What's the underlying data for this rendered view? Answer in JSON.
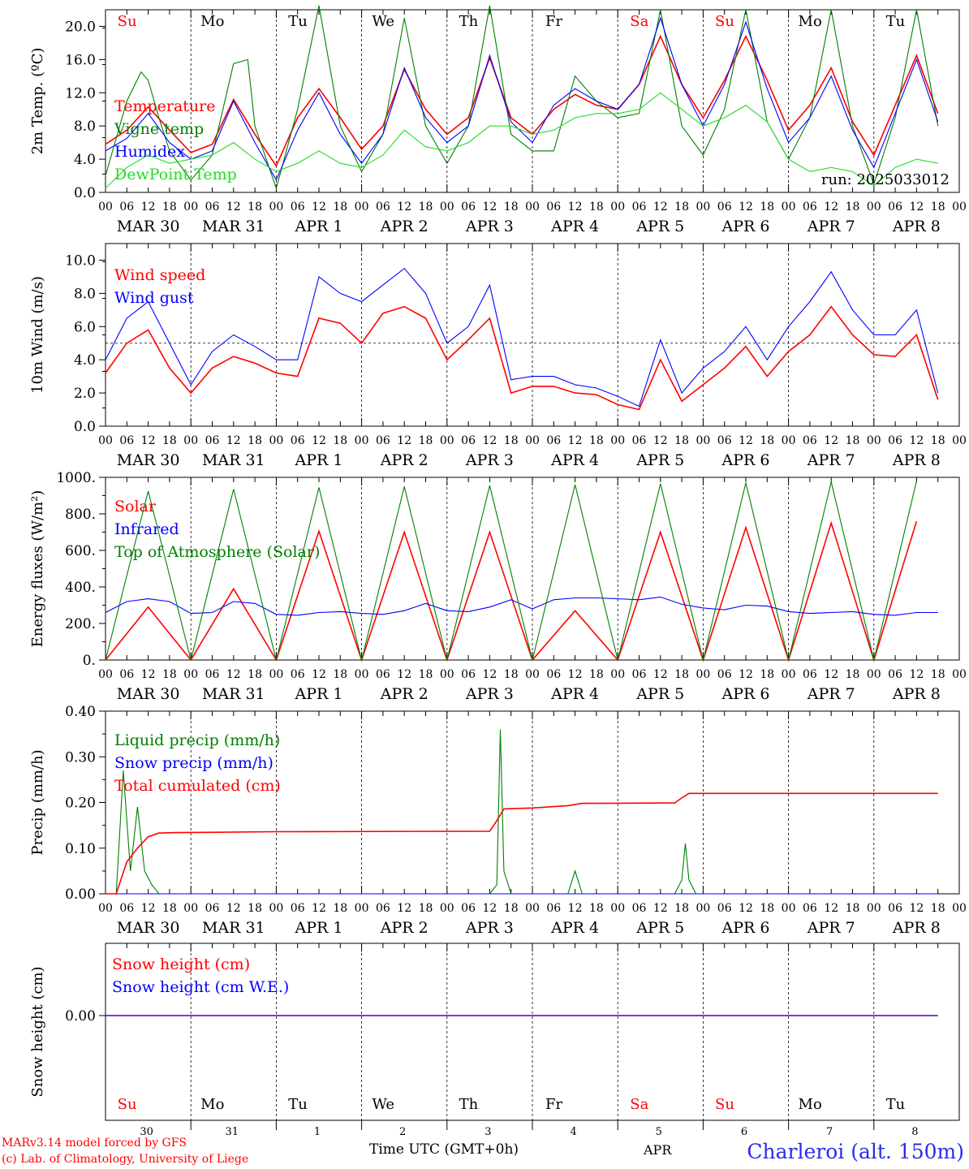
{
  "colors": {
    "red": "#ff0000",
    "blue": "#0000ff",
    "dark_green": "#008000",
    "light_green": "#22dd22",
    "station": "#2a2af0"
  },
  "days": {
    "weekday": [
      "Su",
      "Mo",
      "Tu",
      "We",
      "Th",
      "Fr",
      "Sa",
      "Su",
      "Mo",
      "Tu"
    ],
    "weekday_colors": [
      "#ff0000",
      "#000000",
      "#000000",
      "#000000",
      "#000000",
      "#000000",
      "#ff0000",
      "#ff0000",
      "#000000",
      "#000000"
    ],
    "date": [
      "MAR 30",
      "MAR 31",
      "APR  1",
      "APR  2",
      "APR  3",
      "APR  4",
      "APR  5",
      "APR  6",
      "APR  7",
      "APR  8"
    ],
    "day_number": [
      "30",
      "31",
      "1",
      "2",
      "3",
      "4",
      "5",
      "6",
      "7",
      "8"
    ],
    "hour_ticks": [
      "00",
      "06",
      "12",
      "18"
    ],
    "end_tick": "00"
  },
  "footer": {
    "credit_line1": "MARv3.14 model forced by GFS",
    "credit_line2": "(c) Lab. of Climatology, University of Liege",
    "time_axis": "Time UTC (GMT+0h)",
    "month": "APR",
    "station": "Charleroi (alt. 150m)"
  },
  "chart_data": [
    {
      "type": "line",
      "ylabel": "2m Temp. (ºC)",
      "ylim": [
        0,
        22
      ],
      "yticks": [
        "0.0",
        "4.0",
        "8.0",
        "12.0",
        "16.0",
        "20.0"
      ],
      "annotation": "run: 2025033012",
      "x_unit": "hours from 2025-03-30 00 UTC",
      "series": [
        {
          "name": "Temperature",
          "color": "#ff0000",
          "x": [
            0,
            6,
            12,
            18,
            24,
            30,
            36,
            42,
            48,
            54,
            60,
            66,
            72,
            78,
            84,
            90,
            96,
            102,
            108,
            114,
            120,
            126,
            132,
            138,
            144,
            150,
            156,
            162,
            168,
            174,
            180,
            186,
            192,
            198,
            204,
            210,
            216,
            222,
            228,
            234
          ],
          "values": [
            5.8,
            7.5,
            10.3,
            7.5,
            4.8,
            5.8,
            11.2,
            7.0,
            3.2,
            9.0,
            12.5,
            9.0,
            5.2,
            8.0,
            14.8,
            10.0,
            7.0,
            9.0,
            16.2,
            9.0,
            7.0,
            10.0,
            11.8,
            10.5,
            10.0,
            13.0,
            18.8,
            13.0,
            9.0,
            13.5,
            18.8,
            13.5,
            7.5,
            10.5,
            15.0,
            8.5,
            4.5,
            10.5,
            16.5,
            9.5
          ]
        },
        {
          "name": "Vigne temp",
          "color": "#008000",
          "x": [
            0,
            6,
            10,
            12,
            15,
            18,
            24,
            30,
            36,
            40,
            42,
            48,
            54,
            60,
            66,
            72,
            78,
            84,
            90,
            96,
            102,
            108,
            114,
            120,
            126,
            132,
            138,
            144,
            150,
            156,
            162,
            168,
            174,
            180,
            186,
            192,
            198,
            204,
            210,
            216,
            222,
            228,
            234
          ],
          "values": [
            2.0,
            11.0,
            14.5,
            13.5,
            9.0,
            5.0,
            1.5,
            4.5,
            15.5,
            16.0,
            8.0,
            0.5,
            10.0,
            22.5,
            8.0,
            2.5,
            7.0,
            21.0,
            8.0,
            3.5,
            8.0,
            22.5,
            7.0,
            5.0,
            5.0,
            14.0,
            11.0,
            9.0,
            9.5,
            22.0,
            8.0,
            4.5,
            10.0,
            22.0,
            8.5,
            4.0,
            9.0,
            22.0,
            8.0,
            1.0,
            9.0,
            22.0,
            8.0
          ]
        },
        {
          "name": "Humidex",
          "color": "#0000ff",
          "x": [
            0,
            6,
            12,
            18,
            24,
            30,
            36,
            42,
            48,
            54,
            60,
            66,
            72,
            78,
            84,
            90,
            96,
            102,
            108,
            114,
            120,
            126,
            132,
            138,
            144,
            150,
            156,
            162,
            168,
            174,
            180,
            186,
            192,
            198,
            204,
            210,
            216,
            222,
            228,
            234
          ],
          "values": [
            5.0,
            6.5,
            9.5,
            6.0,
            4.0,
            5.0,
            11.0,
            6.0,
            1.5,
            7.5,
            12.0,
            7.0,
            3.5,
            7.0,
            15.0,
            9.0,
            6.0,
            8.0,
            16.5,
            8.5,
            6.0,
            10.5,
            12.5,
            11.0,
            10.0,
            13.0,
            21.0,
            13.0,
            8.0,
            13.0,
            20.5,
            12.5,
            6.0,
            9.0,
            14.0,
            7.5,
            3.0,
            9.5,
            16.0,
            8.5
          ]
        },
        {
          "name": "DewPoint Temp",
          "color": "#22dd22",
          "x": [
            0,
            6,
            12,
            18,
            24,
            30,
            36,
            42,
            48,
            54,
            60,
            66,
            72,
            78,
            84,
            90,
            96,
            102,
            108,
            114,
            120,
            126,
            132,
            138,
            144,
            150,
            156,
            162,
            168,
            174,
            180,
            186,
            192,
            198,
            204,
            210,
            216,
            222,
            228,
            234
          ],
          "values": [
            0.5,
            3.0,
            4.5,
            3.5,
            4.0,
            4.5,
            6.0,
            4.0,
            2.5,
            3.5,
            5.0,
            3.5,
            3.0,
            4.5,
            7.5,
            5.5,
            5.0,
            6.0,
            8.0,
            8.0,
            7.0,
            7.5,
            9.0,
            9.5,
            9.5,
            10.0,
            12.0,
            10.0,
            8.0,
            9.0,
            10.5,
            8.5,
            4.0,
            2.5,
            3.0,
            2.5,
            0.8,
            3.0,
            4.0,
            3.5
          ]
        }
      ]
    },
    {
      "type": "line",
      "ylabel": "10m Wind (m/s)",
      "ylim": [
        0,
        11
      ],
      "yticks": [
        "0.0",
        "2.0",
        "4.0",
        "6.0",
        "8.0",
        "10.0"
      ],
      "reference_line": 5,
      "x_unit": "hours from 2025-03-30 00 UTC",
      "series": [
        {
          "name": "Wind speed",
          "color": "#ff0000",
          "x": [
            0,
            6,
            12,
            18,
            24,
            30,
            36,
            42,
            48,
            54,
            60,
            66,
            72,
            78,
            84,
            90,
            96,
            102,
            108,
            114,
            120,
            126,
            132,
            138,
            144,
            150,
            156,
            162,
            168,
            174,
            180,
            186,
            192,
            198,
            204,
            210,
            216,
            222,
            228,
            234
          ],
          "values": [
            3.2,
            5.0,
            5.8,
            3.5,
            2.0,
            3.5,
            4.2,
            3.8,
            3.2,
            3.0,
            6.5,
            6.2,
            5.0,
            6.8,
            7.2,
            6.5,
            4.0,
            5.2,
            6.5,
            2.0,
            2.4,
            2.4,
            2.0,
            1.9,
            1.3,
            1.0,
            4.0,
            1.5,
            2.5,
            3.5,
            4.8,
            3.0,
            4.5,
            5.5,
            7.2,
            5.5,
            4.3,
            4.2,
            5.5,
            1.6
          ]
        },
        {
          "name": "Wind gust",
          "color": "#0000ff",
          "x": [
            0,
            6,
            12,
            18,
            24,
            30,
            36,
            42,
            48,
            54,
            60,
            66,
            72,
            78,
            84,
            90,
            96,
            102,
            108,
            114,
            120,
            126,
            132,
            138,
            144,
            150,
            156,
            162,
            168,
            174,
            180,
            186,
            192,
            198,
            204,
            210,
            216,
            222,
            228,
            234
          ],
          "values": [
            4.0,
            6.5,
            7.5,
            5.0,
            2.5,
            4.5,
            5.5,
            4.8,
            4.0,
            4.0,
            9.0,
            8.0,
            7.5,
            8.5,
            9.5,
            8.0,
            5.0,
            6.0,
            8.5,
            2.8,
            3.0,
            3.0,
            2.5,
            2.3,
            1.8,
            1.2,
            5.2,
            2.0,
            3.5,
            4.5,
            6.0,
            4.0,
            6.0,
            7.5,
            9.3,
            7.0,
            5.5,
            5.5,
            7.0,
            2.0
          ]
        }
      ]
    },
    {
      "type": "line",
      "ylabel": "Energy fluxes (W/m²)",
      "ylim": [
        0,
        1000
      ],
      "yticks": [
        "0.",
        "200.",
        "400.",
        "600.",
        "800.",
        "1000."
      ],
      "x_unit": "hours from 2025-03-30 00 UTC",
      "series": [
        {
          "name": "Solar",
          "color": "#ff0000",
          "x": [
            0,
            12,
            24,
            36,
            48,
            60,
            72,
            84,
            96,
            108,
            120,
            132,
            144,
            156,
            168,
            180,
            192,
            204,
            216,
            228
          ],
          "values": [
            0,
            290,
            0,
            390,
            0,
            705,
            0,
            700,
            0,
            700,
            0,
            270,
            0,
            700,
            0,
            725,
            0,
            750,
            0,
            760
          ]
        },
        {
          "name": "Infrared",
          "color": "#0000ff",
          "x": [
            0,
            6,
            12,
            18,
            24,
            30,
            36,
            42,
            48,
            54,
            60,
            66,
            72,
            78,
            84,
            90,
            96,
            102,
            108,
            114,
            120,
            126,
            132,
            138,
            144,
            150,
            156,
            162,
            168,
            174,
            180,
            186,
            192,
            198,
            204,
            210,
            216,
            222,
            228,
            234
          ],
          "values": [
            260,
            320,
            335,
            320,
            255,
            260,
            320,
            310,
            250,
            245,
            260,
            265,
            255,
            250,
            270,
            310,
            270,
            265,
            290,
            330,
            280,
            330,
            340,
            340,
            335,
            330,
            345,
            305,
            285,
            275,
            300,
            295,
            265,
            255,
            260,
            265,
            250,
            245,
            260,
            260
          ]
        },
        {
          "name": "Top of Atmosphere (Solar)",
          "color": "#008000",
          "x": [
            0,
            12,
            24,
            36,
            48,
            60,
            72,
            84,
            96,
            108,
            120,
            132,
            144,
            156,
            168,
            180,
            192,
            204,
            216,
            228
          ],
          "values": [
            0,
            925,
            0,
            935,
            0,
            945,
            0,
            950,
            0,
            955,
            0,
            960,
            0,
            965,
            0,
            970,
            0,
            975,
            0,
            980
          ]
        }
      ]
    },
    {
      "type": "line",
      "ylabel": "Precip (mm/h)",
      "ylim": [
        0,
        0.4
      ],
      "yticks": [
        "0.00",
        "0.10",
        "0.20",
        "0.30",
        "0.40"
      ],
      "x_unit": "hours from 2025-03-30 00 UTC",
      "series": [
        {
          "name": "Liquid precip (mm/h)",
          "color": "#008000",
          "x": [
            0,
            3,
            5,
            7,
            9,
            11,
            13,
            15,
            17,
            108,
            110,
            111,
            112,
            114,
            130,
            132,
            134,
            160,
            162,
            163,
            164,
            166
          ],
          "values": [
            0,
            0,
            0.27,
            0.05,
            0.19,
            0.05,
            0.02,
            0,
            0,
            0,
            0.02,
            0.36,
            0.05,
            0,
            0,
            0.05,
            0,
            0,
            0.03,
            0.11,
            0.03,
            0
          ]
        },
        {
          "name": "Snow precip (mm/h)",
          "color": "#0000ff",
          "x": [
            0,
            234
          ],
          "values": [
            0,
            0
          ]
        },
        {
          "name": "Total cumulated (cm)",
          "color": "#ff0000",
          "x": [
            0,
            3,
            6,
            9,
            12,
            15,
            20,
            48,
            108,
            110,
            112,
            120,
            130,
            134,
            160,
            162,
            164,
            234
          ],
          "values": [
            0,
            0,
            0.07,
            0.1,
            0.125,
            0.133,
            0.134,
            0.136,
            0.137,
            0.16,
            0.186,
            0.188,
            0.193,
            0.198,
            0.199,
            0.21,
            0.22,
            0.22
          ]
        }
      ]
    },
    {
      "type": "line",
      "ylabel": "Snow height (cm)",
      "yticks": [
        "0.00"
      ],
      "x_unit": "hours from 2025-03-30 00 UTC",
      "series": [
        {
          "name": "Snow height (cm)",
          "color": "#ff0000",
          "x": [
            0,
            234
          ],
          "values": [
            0,
            0
          ]
        },
        {
          "name": "Snow height (cm W.E.)",
          "color": "#0000ff",
          "x": [
            0,
            234
          ],
          "values": [
            0,
            0
          ]
        }
      ]
    }
  ]
}
